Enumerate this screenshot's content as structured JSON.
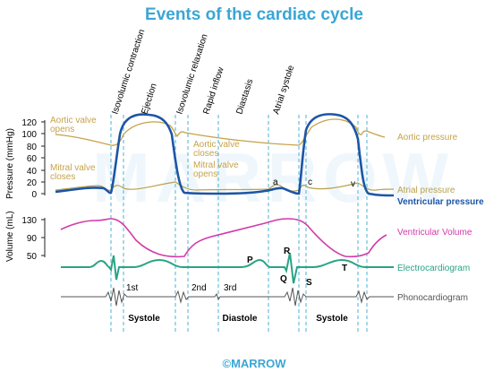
{
  "title": "Events of the cardiac cycle",
  "watermark": "MARROW",
  "footer_logo": "©MARROW",
  "colors": {
    "title": "#3aa6d6",
    "aortic": "#c6a24a",
    "atrial": "#b8a24a",
    "ventricular_pressure": "#1d55a6",
    "volume": "#d23aa8",
    "ecg": "#2aa386",
    "phono": "#555555",
    "guides": "#4ab3d6"
  },
  "phases": [
    "Isovolumic contraction",
    "Ejection",
    "Isovolumic relaxation",
    "Rapid inflow",
    "Diastasis",
    "Atrial systole"
  ],
  "pressure_axis": {
    "label": "Pressure (mmHg)",
    "ticks": [
      "120",
      "100",
      "80",
      "60",
      "40",
      "20",
      "0"
    ]
  },
  "volume_axis": {
    "label": "Volume (mL)",
    "ticks": [
      "130",
      "90",
      "50"
    ]
  },
  "annotations": {
    "aortic_valve_opens": [
      "Aortic valve",
      "opens"
    ],
    "aortic_valve_closes": [
      "Aortic valve",
      "closes"
    ],
    "mitral_valve_closes": [
      "Mitral valve",
      "closes"
    ],
    "mitral_valve_opens": [
      "Mitral valve",
      "opens"
    ],
    "wave_a": "a",
    "wave_c": "c",
    "wave_v": "v",
    "ecg_p": "P",
    "ecg_r": "R",
    "ecg_q": "Q",
    "ecg_s": "S",
    "ecg_t": "T",
    "sound_1": "1st",
    "sound_2": "2nd",
    "sound_3": "3rd"
  },
  "legend": {
    "aortic_pressure": "Aortic pressure",
    "atrial_pressure": "Atrial pressure",
    "ventricular_pressure": "Ventricular pressure",
    "ventricular_volume": "Ventricular Volume",
    "ecg": "Electrocardiogram",
    "phono": "Phonocardiogram"
  },
  "bottom_labels": [
    "Systole",
    "Diastole",
    "Systole"
  ]
}
